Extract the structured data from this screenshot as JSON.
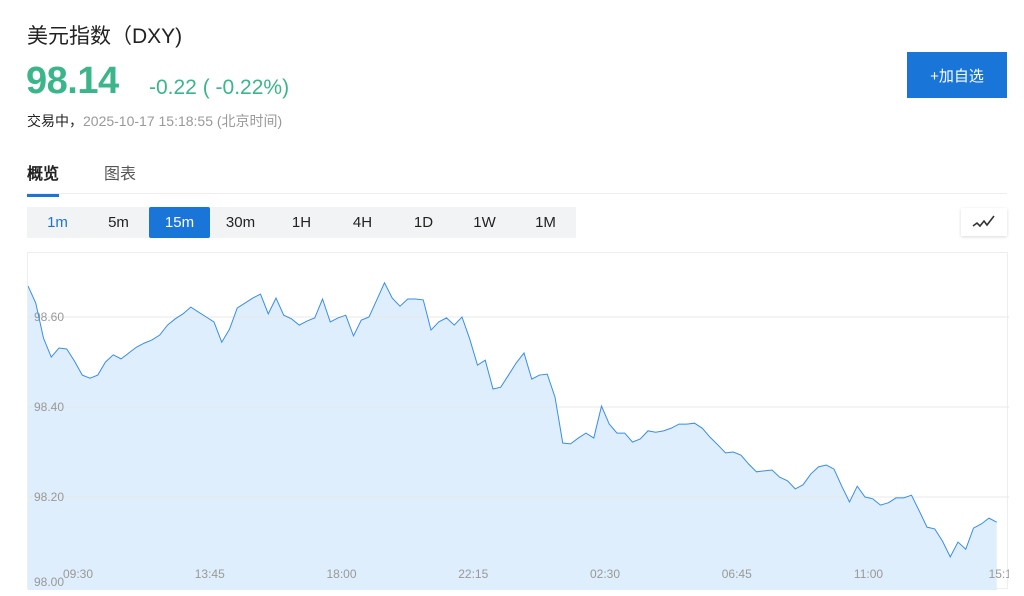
{
  "header": {
    "title": "美元指数（DXY)",
    "price": "98.14",
    "change": "-0.22 ( -0.22%)",
    "status": "交易中，",
    "timestamp": "2025-10-17 15:18:55 (北京时间)",
    "add_watchlist_label": "+加自选"
  },
  "tabs": [
    {
      "label": "概览",
      "active": true
    },
    {
      "label": "图表",
      "active": false
    }
  ],
  "intervals": [
    {
      "label": "1m"
    },
    {
      "label": "5m"
    },
    {
      "label": "15m",
      "active": true
    },
    {
      "label": "30m"
    },
    {
      "label": "1H"
    },
    {
      "label": "4H"
    },
    {
      "label": "1D"
    },
    {
      "label": "1W"
    },
    {
      "label": "1M"
    }
  ],
  "chart_type_icon": "line-chart-icon",
  "colors": {
    "up_down": "#3bb58a",
    "accent": "#1a75d8",
    "line": "#3a8ee6",
    "fill": "#deeefc"
  },
  "chart_data": {
    "type": "area",
    "interval": "15m",
    "ylim": [
      98.0,
      98.745
    ],
    "yticks": [
      "98.60",
      "98.40",
      "98.20",
      "98.00"
    ],
    "ytick_values": [
      98.6,
      98.4,
      98.2,
      98.0
    ],
    "xticks": [
      "09:30",
      "13:45",
      "18:00",
      "22:15",
      "02:30",
      "06:45",
      "11:00",
      "15:1"
    ],
    "grid": true,
    "values": [
      98.669,
      98.631,
      98.553,
      98.511,
      98.531,
      98.529,
      98.502,
      98.471,
      98.464,
      98.471,
      98.5,
      98.516,
      98.507,
      98.52,
      98.533,
      98.542,
      98.549,
      98.56,
      98.582,
      98.596,
      98.607,
      98.622,
      98.611,
      98.6,
      98.589,
      98.544,
      98.573,
      98.62,
      98.631,
      98.642,
      98.651,
      98.607,
      98.642,
      98.604,
      98.596,
      98.582,
      98.591,
      98.598,
      98.64,
      98.589,
      98.598,
      98.604,
      98.558,
      98.593,
      98.6,
      98.638,
      98.676,
      98.642,
      98.624,
      98.64,
      98.64,
      98.638,
      98.571,
      98.589,
      98.598,
      98.582,
      98.6,
      98.551,
      98.493,
      98.504,
      98.44,
      98.444,
      98.471,
      98.498,
      98.52,
      98.462,
      98.471,
      98.473,
      98.422,
      98.32,
      98.318,
      98.331,
      98.342,
      98.331,
      98.402,
      98.362,
      98.342,
      98.342,
      98.322,
      98.329,
      98.347,
      98.344,
      98.347,
      98.353,
      98.362,
      98.362,
      98.364,
      98.353,
      98.333,
      98.316,
      98.298,
      98.3,
      98.293,
      98.273,
      98.256,
      98.258,
      98.26,
      98.244,
      98.236,
      98.218,
      98.227,
      98.251,
      98.267,
      98.271,
      98.262,
      98.224,
      98.189,
      98.224,
      98.2,
      98.196,
      98.182,
      98.187,
      98.198,
      98.198,
      98.204,
      98.169,
      98.133,
      98.129,
      98.102,
      98.067,
      98.1,
      98.084,
      98.131,
      98.14,
      98.153,
      98.144
    ]
  }
}
